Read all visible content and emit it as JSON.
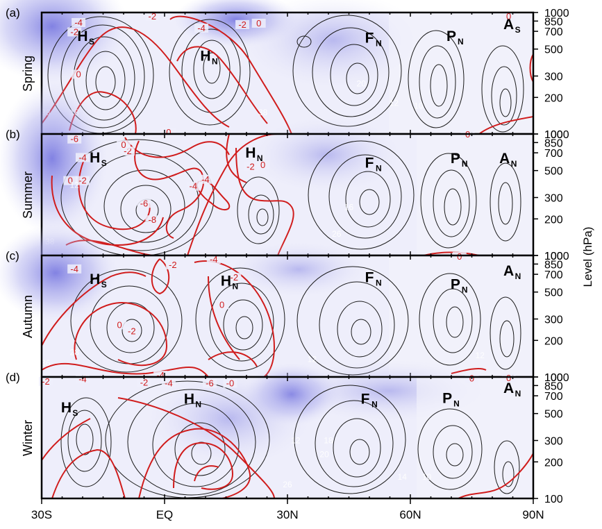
{
  "chart_data": {
    "type": "contour",
    "x_ticks": [
      "30S",
      "EQ",
      "30N",
      "60N",
      "90N"
    ],
    "x_tick_values": [
      -30,
      0,
      30,
      60,
      90
    ],
    "xlim": [
      -30,
      90
    ],
    "y_label": "Level (hPa)",
    "y_ticks": [
      "100",
      "200",
      "300",
      "500",
      "700",
      "850",
      "1000"
    ],
    "y_tick_values": [
      100,
      200,
      300,
      500,
      700,
      850,
      1000
    ],
    "ylim": [
      1000,
      100
    ],
    "panels": [
      {
        "tag": "(a)",
        "season": "Spring",
        "centres": [
          {
            "main": "H",
            "sub": "S",
            "lat": -20,
            "p": 640
          },
          {
            "main": "H",
            "sub": "N",
            "lat": 10,
            "p": 440
          },
          {
            "main": "F",
            "sub": "N",
            "lat": 50,
            "p": 620
          },
          {
            "main": "P",
            "sub": "N",
            "lat": 70,
            "p": 640
          },
          {
            "main": "A",
            "sub": "S",
            "lat": 84,
            "p": 800
          }
        ],
        "red_labels": [
          {
            "text": "0",
            "lat": -21,
            "p": 300
          },
          {
            "text": "-2",
            "lat": -22,
            "p": 670
          },
          {
            "text": "-4",
            "lat": -21,
            "p": 800
          },
          {
            "text": "-2",
            "lat": -3,
            "p": 900
          },
          {
            "text": "-4",
            "lat": 9,
            "p": 720
          },
          {
            "text": "-2",
            "lat": 19,
            "p": 770
          },
          {
            "text": "0",
            "lat": 23,
            "p": 790
          },
          {
            "text": "0",
            "lat": 1,
            "p": 100
          },
          {
            "text": "0",
            "lat": 84,
            "p": 900
          }
        ],
        "white_labels": [
          {
            "text": "38",
            "lat": -29,
            "p": 150
          },
          {
            "text": "18",
            "lat": -22,
            "p": 150
          },
          {
            "text": "38",
            "lat": 24,
            "p": 150
          },
          {
            "text": "20",
            "lat": 48,
            "p": 260
          },
          {
            "text": "12",
            "lat": 56,
            "p": 180
          },
          {
            "text": "10",
            "lat": 62,
            "p": 170
          }
        ]
      },
      {
        "tag": "(b)",
        "season": "Summer",
        "centres": [
          {
            "main": "H",
            "sub": "S",
            "lat": -17,
            "p": 640
          },
          {
            "main": "H",
            "sub": "N",
            "lat": 21,
            "p": 700
          },
          {
            "main": "F",
            "sub": "N",
            "lat": 50,
            "p": 580
          },
          {
            "main": "P",
            "sub": "N",
            "lat": 71,
            "p": 630
          },
          {
            "main": "A",
            "sub": "N",
            "lat": 83,
            "p": 630
          }
        ],
        "red_labels": [
          {
            "text": "-8",
            "lat": -3,
            "p": 190
          },
          {
            "text": "-6",
            "lat": -5,
            "p": 260
          },
          {
            "text": "0",
            "lat": -23,
            "p": 400
          },
          {
            "text": "-2",
            "lat": -20,
            "p": 400
          },
          {
            "text": "-4",
            "lat": -20,
            "p": 620
          },
          {
            "text": "-2",
            "lat": -9,
            "p": 700
          },
          {
            "text": "0",
            "lat": -10,
            "p": 790
          },
          {
            "text": "-6",
            "lat": -22,
            "p": 880
          },
          {
            "text": "-4",
            "lat": 7,
            "p": 360
          },
          {
            "text": "-4",
            "lat": 10,
            "p": 410
          },
          {
            "text": "-2",
            "lat": 21,
            "p": 520
          },
          {
            "text": "0",
            "lat": 24,
            "p": 540
          },
          {
            "text": "0",
            "lat": 74,
            "p": 960
          }
        ],
        "white_labels": [
          {
            "text": "38",
            "lat": -28,
            "p": 130
          },
          {
            "text": "12",
            "lat": -22,
            "p": 380
          },
          {
            "text": "26",
            "lat": 42,
            "p": 150
          },
          {
            "text": "16",
            "lat": 45,
            "p": 250
          }
        ]
      },
      {
        "tag": "(c)",
        "season": "Autumn",
        "centres": [
          {
            "main": "H",
            "sub": "S",
            "lat": -17,
            "p": 640
          },
          {
            "main": "H",
            "sub": "N",
            "lat": 15,
            "p": 620
          },
          {
            "main": "F",
            "sub": "N",
            "lat": 50,
            "p": 660
          },
          {
            "main": "P",
            "sub": "N",
            "lat": 71,
            "p": 580
          },
          {
            "main": "A",
            "sub": "N",
            "lat": 84,
            "p": 750
          }
        ],
        "red_labels": [
          {
            "text": "-4",
            "lat": -1,
            "p": 100
          },
          {
            "text": "0",
            "lat": -11,
            "p": 260
          },
          {
            "text": "-2",
            "lat": -8,
            "p": 230
          },
          {
            "text": "-4",
            "lat": -22,
            "p": 750
          },
          {
            "text": "-2",
            "lat": 2,
            "p": 810
          },
          {
            "text": "-4",
            "lat": 12,
            "p": 900
          },
          {
            "text": "0",
            "lat": 14,
            "p": 380
          },
          {
            "text": "-2",
            "lat": 17,
            "p": 640
          },
          {
            "text": "0",
            "lat": 72,
            "p": 950
          }
        ],
        "white_labels": [
          {
            "text": "36",
            "lat": -29,
            "p": 130
          },
          {
            "text": "28",
            "lat": -22,
            "p": 160
          },
          {
            "text": "12",
            "lat": 36,
            "p": 140
          },
          {
            "text": "12",
            "lat": 77,
            "p": 150
          }
        ]
      },
      {
        "tag": "(d)",
        "season": "Winter",
        "centres": [
          {
            "main": "H",
            "sub": "S",
            "lat": -24,
            "p": 560
          },
          {
            "main": "H",
            "sub": "N",
            "lat": 6,
            "p": 660
          },
          {
            "main": "F",
            "sub": "N",
            "lat": 49,
            "p": 660
          },
          {
            "main": "P",
            "sub": "N",
            "lat": 69,
            "p": 670
          },
          {
            "main": "A",
            "sub": "N",
            "lat": 84,
            "p": 810
          }
        ],
        "red_labels": [
          {
            "text": "-2",
            "lat": -29,
            "p": 890
          },
          {
            "text": "-4",
            "lat": -20,
            "p": 930
          },
          {
            "text": "-2",
            "lat": -5,
            "p": 870
          },
          {
            "text": "-4",
            "lat": 1,
            "p": 860
          },
          {
            "text": "-6",
            "lat": 11,
            "p": 860
          },
          {
            "text": "-0",
            "lat": 16,
            "p": 860
          },
          {
            "text": "0",
            "lat": 75,
            "p": 940
          },
          {
            "text": "0",
            "lat": 84,
            "p": 950
          }
        ],
        "white_labels": [
          {
            "text": "26",
            "lat": 30,
            "p": 130
          },
          {
            "text": "20",
            "lat": 39,
            "p": 230
          },
          {
            "text": "14",
            "lat": 58,
            "p": 150
          },
          {
            "text": "10",
            "lat": 64,
            "p": 150
          },
          {
            "text": "18",
            "lat": 40,
            "p": 300
          },
          {
            "text": "12",
            "lat": 32,
            "p": 300
          }
        ]
      }
    ]
  }
}
